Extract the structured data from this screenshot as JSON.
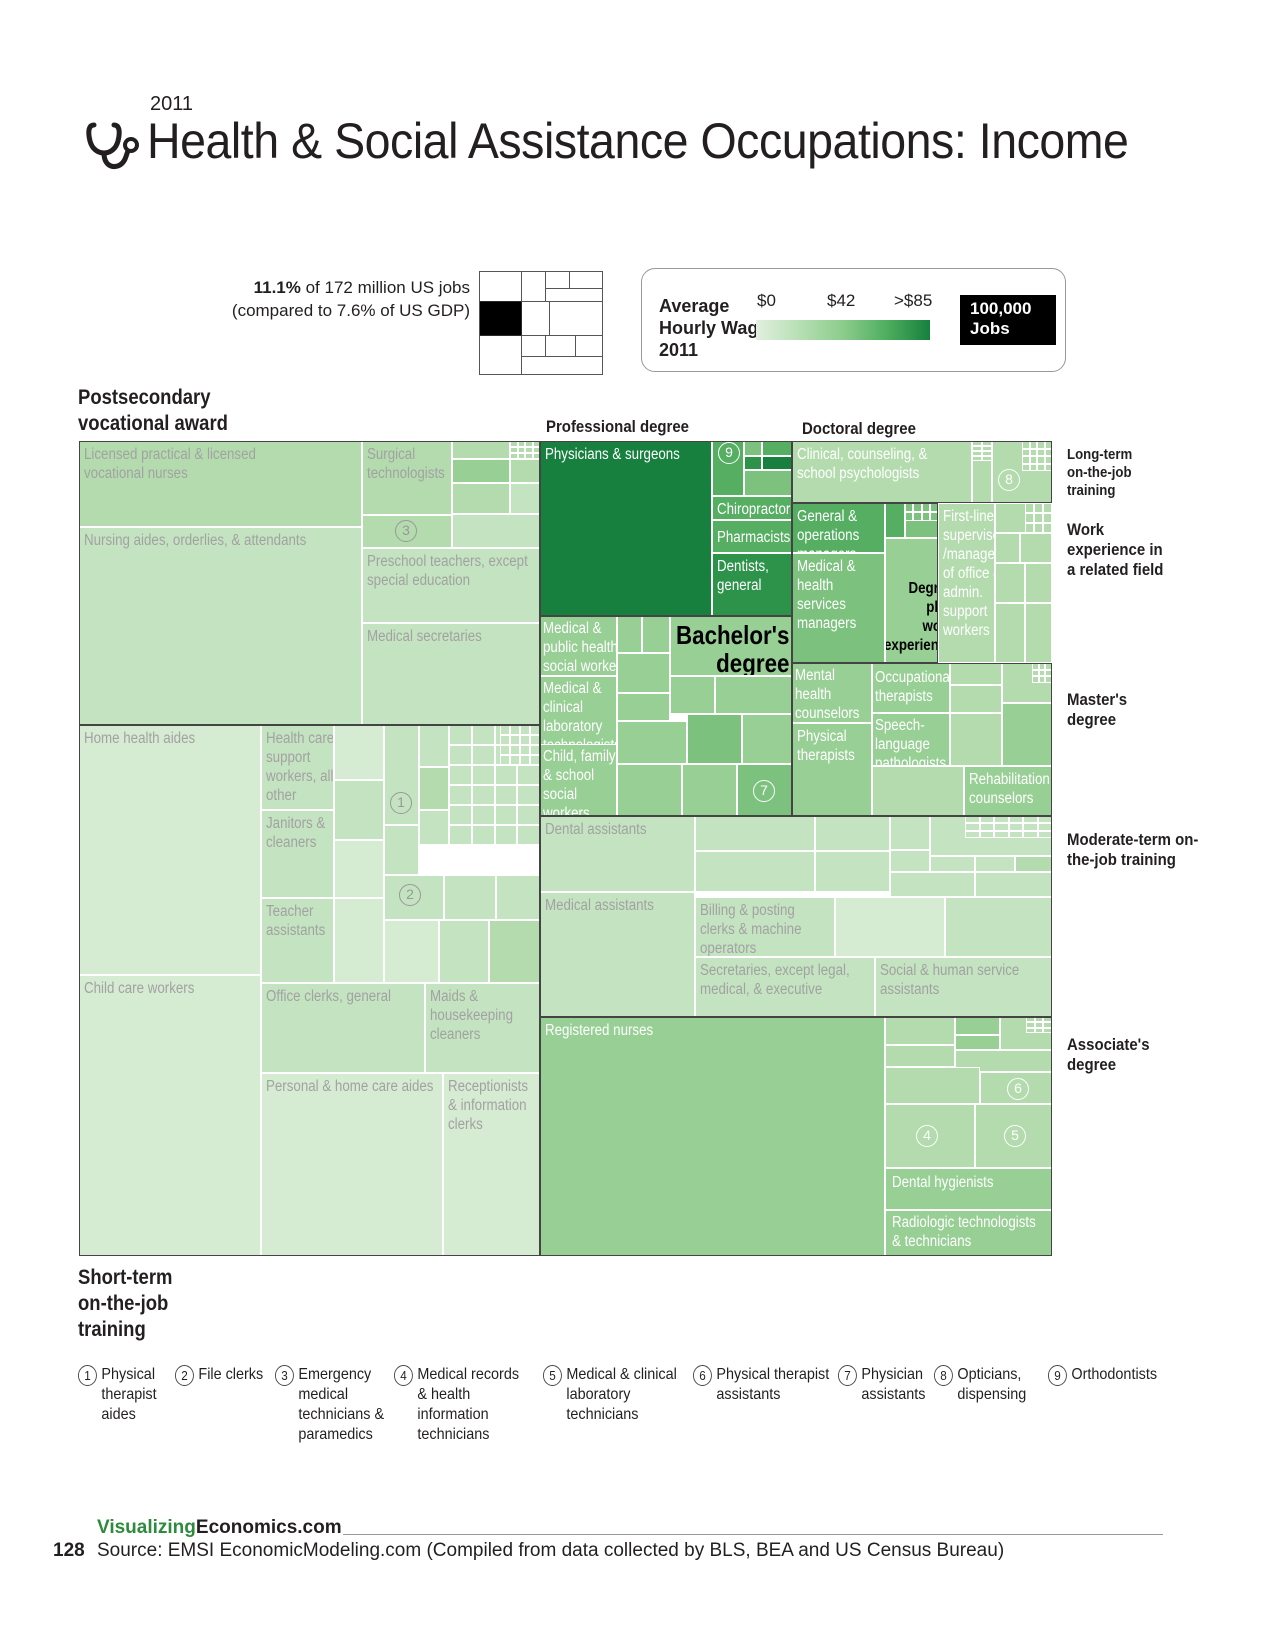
{
  "header": {
    "year": "2011",
    "title": "Health & Social Assistance Occupations: Income"
  },
  "share": {
    "pct": "11.1%",
    "line1_rest": " of 172 million US jobs",
    "line2": "(compared to 7.6% of US GDP)"
  },
  "legend": {
    "title": "Average Hourly Wage 2011",
    "tick_min": "$0",
    "tick_mid": "$42",
    "tick_max": ">$85",
    "jobs_box": "100,000 Jobs"
  },
  "categories": {
    "postsecondary": "Postsecondary vocational award",
    "professional": "Professional degree",
    "doctoral": "Doctoral degree",
    "long_term": "Long-term on-the-job training",
    "work_exp": "Work experience in a related field",
    "masters": "Master's degree",
    "moderate": "Moderate-term on-the-job training",
    "associates": "Associate's degree",
    "short_term": "Short-term on-the-job training"
  },
  "chart_data": {
    "type": "treemap",
    "title": "Health & Social Assistance Occupations: Income",
    "size_measure": "jobs",
    "color_measure": "Average Hourly Wage 2011",
    "color_scale": [
      "$0",
      "$42",
      ">$85"
    ],
    "groups": [
      {
        "name": "Postsecondary vocational award",
        "labeled": [
          "Licensed practical & licensed vocational nurses",
          "Nursing aides, orderlies, & attendants",
          "Surgical technologists",
          "Preschool teachers, except special education",
          "Medical secretaries",
          "Emergency medical technicians & paramedics"
        ]
      },
      {
        "name": "Short-term on-the-job training",
        "labeled": [
          "Home health aides",
          "Child care workers",
          "Health care support workers, all other",
          "Janitors & cleaners",
          "Teacher assistants",
          "Office clerks, general",
          "Maids & housekeeping cleaners",
          "Personal & home care aides",
          "Receptionists & information clerks",
          "Physical therapist aides",
          "File clerks"
        ]
      },
      {
        "name": "Professional degree",
        "labeled": [
          "Physicians & surgeons",
          "Chiropractors",
          "Pharmacists",
          "Dentists, general",
          "Orthodontists"
        ]
      },
      {
        "name": "Doctoral degree",
        "labeled": [
          "Clinical, counseling, & school psychologists"
        ]
      },
      {
        "name": "Long-term on-the-job training",
        "labeled": [
          "Opticians, dispensing"
        ]
      },
      {
        "name": "Bachelor's degree",
        "labeled": [
          "Medical & public health social workers",
          "Medical & clinical laboratory technologists",
          "Child, family, & school social workers"
        ]
      },
      {
        "name": "Degree plus work experience",
        "labeled": [
          "General & operations managers",
          "Medical & health services managers"
        ]
      },
      {
        "name": "Work experience in a related field",
        "labeled": [
          "First-line supervisors /managers of office & admin. support workers"
        ]
      },
      {
        "name": "Master's degree",
        "labeled": [
          "Mental health counselors",
          "Physical therapists",
          "Occupational therapists",
          "Speech-language pathologists",
          "Rehabilitation counselors",
          "Physician assistants"
        ]
      },
      {
        "name": "Moderate-term on-the-job training",
        "labeled": [
          "Dental assistants",
          "Medical assistants",
          "Billing & posting clerks & machine operators",
          "Secretaries, except legal, medical, & executive",
          "Social & human service assistants"
        ]
      },
      {
        "name": "Associate's degree",
        "labeled": [
          "Registered nurses",
          "Dental hygienists",
          "Radiologic technologists & technicians",
          "Medical records & health information technicians",
          "Medical & clinical laboratory technicians",
          "Physical therapist assistants"
        ]
      }
    ]
  },
  "cell_labels": {
    "lpn": "Licensed practical & licensed\nvocational nurses",
    "nursing_aides": "Nursing aides, orderlies, & attendants",
    "surgical": "Surgical\ntechnologists",
    "preschool": "Preschool teachers, except\nspecial education",
    "med_secretaries": "Medical secretaries",
    "home_health": "Home health aides",
    "child_care": "Child care workers",
    "hc_support": "Health care\nsupport\nworkers, all\nother",
    "janitors": "Janitors &\ncleaners",
    "teacher_asst": "Teacher\nassistants",
    "office_clerks": "Office clerks, general",
    "maids": "Maids &\nhousekeeping\ncleaners",
    "personal_care": "Personal & home care aides",
    "receptionists": "Receptionists\n& information\nclerks",
    "physicians": "Physicians & surgeons",
    "chiropractors": "Chiropractors",
    "pharmacists": "Pharmacists",
    "dentists": "Dentists,\ngeneral",
    "psychologists": "Clinical, counseling, &\nschool psychologists",
    "gen_ops": "General &\noperations\nmanagers",
    "med_health_mgr": "Medical &\nhealth\nservices\nmanagers",
    "degree_plus": "Degree\nplus\nwork\nexperience",
    "first_line": "First-line\nsupervisors\n/managers\nof office &\nadmin.\nsupport\nworkers",
    "bachelors": "Bachelor's\ndegree",
    "med_social": "Medical &\npublic health\nsocial workers",
    "lab_techno": "Medical &\nclinical\nlaboratory\ntechnologists",
    "child_social": "Child, family,\n& school\nsocial\nworkers",
    "mental_health": "Mental\nhealth\ncounselors",
    "phys_therapists": "Physical\ntherapists",
    "occ_therapists": "Occupational\ntherapists",
    "speech": "Speech-\nlanguage\npathologists",
    "rehab": "Rehabilitation\ncounselors",
    "dental_asst": "Dental assistants",
    "medical_asst": "Medical assistants",
    "billing": "Billing & posting\nclerks & machine\noperators",
    "secretaries": "Secretaries, except legal,\nmedical, & executive",
    "social_human": "Social & human service\nassistants",
    "rn": "Registered nurses",
    "dental_hyg": "Dental hygienists",
    "radiologic": "Radiologic technologists\n& technicians"
  },
  "footnotes": [
    {
      "num": "1",
      "text": "Physical\ntherapist\naides"
    },
    {
      "num": "2",
      "text": "File clerks"
    },
    {
      "num": "3",
      "text": "Emergency\nmedical\ntechnicians &\nparamedics"
    },
    {
      "num": "4",
      "text": "Medical records\n& health\ninformation\ntechnicians"
    },
    {
      "num": "5",
      "text": "Medical & clinical\nlaboratory\ntechnicians"
    },
    {
      "num": "6",
      "text": "Physical therapist\nassistants"
    },
    {
      "num": "7",
      "text": "Physician\nassistants"
    },
    {
      "num": "8",
      "text": "Opticians,\ndispensing"
    },
    {
      "num": "9",
      "text": "Orthodontists"
    }
  ],
  "footer": {
    "site_a": "Visualizing",
    "site_b": "Economics.com",
    "page_num": "128",
    "source": "Source: EMSI EconomicModeling.com (Compiled from data collected by BLS, BEA and US Census Bureau)"
  },
  "colors": {
    "c1": "#d5ebd2",
    "c2": "#c4e3c0",
    "c3": "#b3dbae",
    "c4": "#98cf95",
    "c5": "#7cc27e",
    "c6": "#55ae62",
    "c7": "#2e934a",
    "c8": "#17803e",
    "text_light": "#a2a2a2",
    "text_white": "#ffffff"
  }
}
